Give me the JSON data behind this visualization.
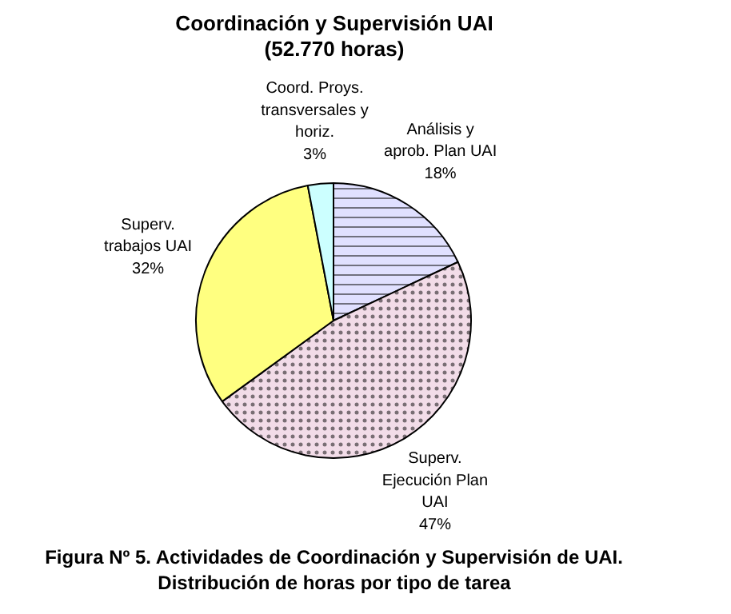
{
  "chart_data": {
    "type": "pie",
    "title": "Coordinación y Supervisión UAI",
    "subtitle": "(52.770 horas)",
    "categories": [
      "Análisis y aprob. Plan UAI",
      "Superv. Ejecución Plan UAI",
      "Superv. trabajos UAI",
      "Coord. Proys. transversales y horiz."
    ],
    "values": [
      18,
      47,
      32,
      3
    ],
    "value_labels": [
      "18%",
      "47%",
      "32%",
      "3%"
    ],
    "colors": [
      "#e0e0ff",
      "#f2dce8",
      "#ffff80",
      "#ccffff"
    ],
    "annotations": [
      "Figura Nº 5. Actividades de Coordinación y Supervisión de UAI.",
      "Distribución de horas por tipo de tarea"
    ]
  }
}
